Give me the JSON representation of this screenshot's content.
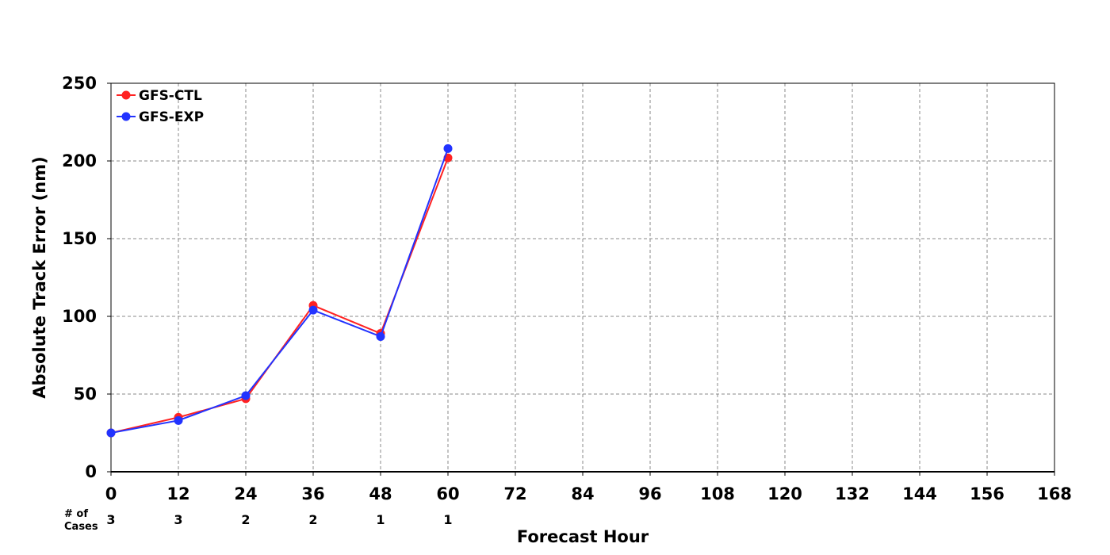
{
  "chart_data": {
    "type": "line",
    "xlabel": "Forecast Hour",
    "ylabel": "Absolute Track Error (nm)",
    "xlim": [
      0,
      168
    ],
    "ylim": [
      0,
      250
    ],
    "x_ticks": [
      0,
      12,
      24,
      36,
      48,
      60,
      72,
      84,
      96,
      108,
      120,
      132,
      144,
      156,
      168
    ],
    "y_ticks": [
      0,
      50,
      100,
      150,
      200,
      250
    ],
    "grid": true,
    "legend_position": "top-left",
    "series": [
      {
        "name": "GFS-CTL",
        "color": "#ff2222",
        "x": [
          0,
          12,
          24,
          36,
          48,
          60
        ],
        "y": [
          25,
          35,
          47,
          107,
          89,
          202
        ]
      },
      {
        "name": "GFS-EXP",
        "color": "#2233ff",
        "x": [
          0,
          12,
          24,
          36,
          48,
          60
        ],
        "y": [
          25,
          33,
          49,
          104,
          87,
          208
        ]
      }
    ],
    "cases": {
      "label_line1": "# of",
      "label_line2": "Cases",
      "x": [
        0,
        12,
        24,
        36,
        48,
        60
      ],
      "values": [
        "3",
        "3",
        "2",
        "2",
        "1",
        "1"
      ]
    }
  }
}
